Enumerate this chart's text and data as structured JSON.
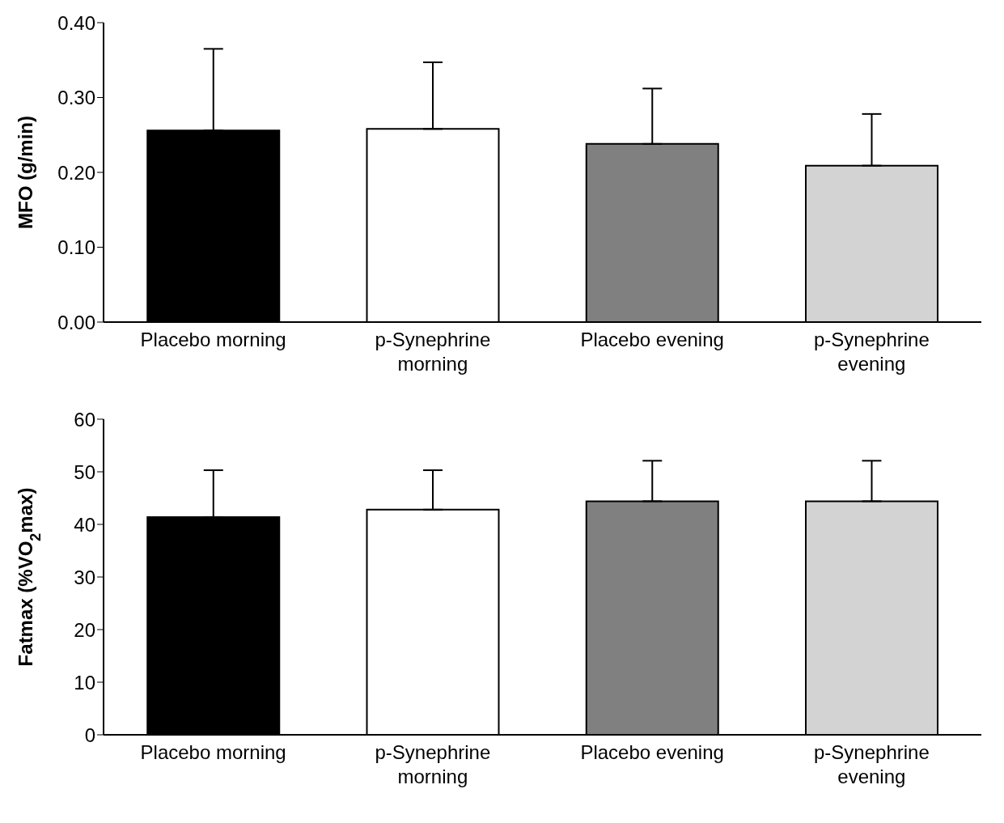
{
  "chart_data": [
    {
      "type": "bar",
      "ylabel": "MFO (g/min)",
      "categories": [
        "Placebo morning",
        "p-Synephrine morning",
        "Placebo evening",
        "p-Synephrine evening"
      ],
      "values": [
        0.256,
        0.258,
        0.238,
        0.209
      ],
      "colors": [
        "#000000",
        "#ffffff",
        "#808080",
        "#d3d3d3"
      ],
      "errors": [
        [
          0.256,
          0.365
        ],
        [
          0.258,
          0.347
        ],
        [
          0.238,
          0.312
        ],
        [
          0.209,
          0.278
        ]
      ],
      "ylim": [
        0,
        0.4
      ],
      "yticks": [
        {
          "value": 0,
          "label": "0.00"
        },
        {
          "value": 0.1,
          "label": "0.10"
        },
        {
          "value": 0.2,
          "label": "0.20"
        },
        {
          "value": 0.3,
          "label": "0.30"
        },
        {
          "value": 0.4,
          "label": "0.40"
        }
      ],
      "grid": false,
      "legend": false
    },
    {
      "type": "bar",
      "ylabel": "Fatmax (%VO$_{2}$max)",
      "categories": [
        "Placebo morning",
        "p-Synephrine morning",
        "Placebo evening",
        "p-Synephrine evening"
      ],
      "values": [
        41.4,
        42.8,
        44.4,
        44.4
      ],
      "colors": [
        "#000000",
        "#ffffff",
        "#808080",
        "#d3d3d3"
      ],
      "errors": [
        [
          41.4,
          50.3
        ],
        [
          42.8,
          50.3
        ],
        [
          44.4,
          52.1
        ],
        [
          44.4,
          52.1
        ]
      ],
      "ylim": [
        0,
        60
      ],
      "yticks": [
        0,
        10,
        20,
        30,
        40,
        50,
        60
      ],
      "grid": false,
      "legend": false
    }
  ]
}
